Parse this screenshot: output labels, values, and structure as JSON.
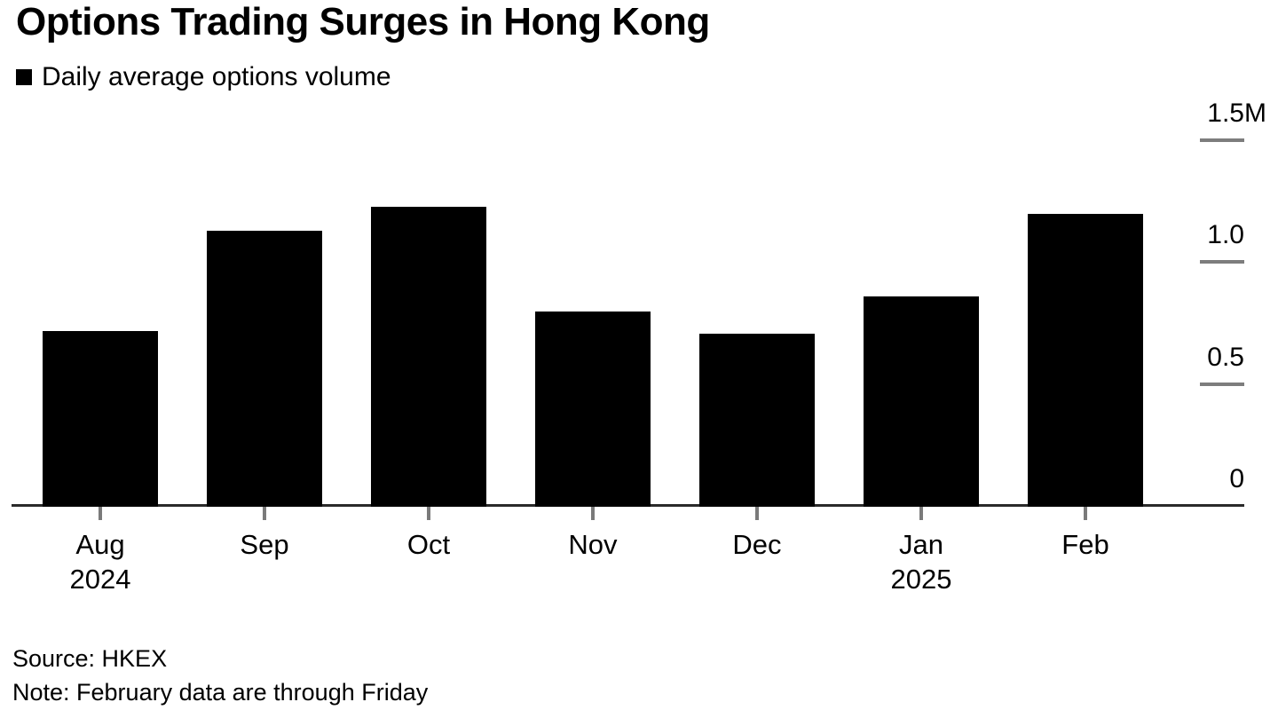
{
  "title": "Options Trading Surges in Hong Kong",
  "legend": {
    "label": "Daily average options volume",
    "swatch": "black-square"
  },
  "footer": {
    "source": "Source: HKEX",
    "note": "Note: February data are through Friday"
  },
  "colors": {
    "background": "#ffffff",
    "bar": "#000000",
    "text": "#000000",
    "axis_line": "#2a2a2a",
    "tick_mark": "#7a7a7a",
    "ytick_dash": "#7d7d7d"
  },
  "chart_data": {
    "type": "bar",
    "title": "Options Trading Surges in Hong Kong",
    "series_name": "Daily average options volume",
    "categories": [
      "Aug",
      "Sep",
      "Oct",
      "Nov",
      "Dec",
      "Jan",
      "Feb"
    ],
    "category_year_labels": [
      "2024",
      "",
      "",
      "",
      "",
      "2025",
      ""
    ],
    "values": [
      0.72,
      1.13,
      1.23,
      0.8,
      0.71,
      0.86,
      1.2
    ],
    "unit": "M",
    "value_scale": "millions of contracts",
    "ylim": [
      0,
      1.5
    ],
    "yticks": [
      {
        "value": 1.5,
        "label": "1.5",
        "suffix": "M"
      },
      {
        "value": 1.0,
        "label": "1.0",
        "suffix": ""
      },
      {
        "value": 0.5,
        "label": "0.5",
        "suffix": ""
      },
      {
        "value": 0,
        "label": "0",
        "suffix": ""
      }
    ],
    "bar_color": "#000000",
    "grid": false,
    "y_axis_position": "right",
    "legend_position": "top-left"
  }
}
